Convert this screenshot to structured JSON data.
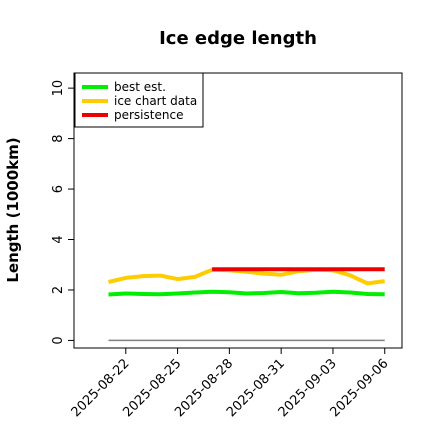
{
  "chart_data": {
    "type": "line",
    "title": "Ice edge length",
    "xlabel": "",
    "ylabel": "Length (1000km)",
    "ylim": [
      -0.3,
      10.6
    ],
    "xlim": [
      "2025-08-19",
      "2025-09-07"
    ],
    "yticks": [
      0,
      2,
      4,
      6,
      8,
      10
    ],
    "xticks": [
      "2025-08-22",
      "2025-08-25",
      "2025-08-28",
      "2025-08-31",
      "2025-09-03",
      "2025-09-06"
    ],
    "grid": false,
    "legend_position": "top-left",
    "series": [
      {
        "name": "best est.",
        "color": "#00ee00",
        "x": [
          "2025-08-21",
          "2025-08-22",
          "2025-08-23",
          "2025-08-24",
          "2025-08-25",
          "2025-08-26",
          "2025-08-27",
          "2025-08-28",
          "2025-08-29",
          "2025-08-30",
          "2025-08-31",
          "2025-09-01",
          "2025-09-02",
          "2025-09-03",
          "2025-09-04",
          "2025-09-05",
          "2025-09-06"
        ],
        "values": [
          1.82,
          1.86,
          1.84,
          1.83,
          1.86,
          1.9,
          1.93,
          1.91,
          1.86,
          1.88,
          1.92,
          1.87,
          1.89,
          1.93,
          1.9,
          1.84,
          1.83
        ]
      },
      {
        "name": "ice chart data",
        "color": "#ffcc00",
        "x": [
          "2025-08-21",
          "2025-08-22",
          "2025-08-23",
          "2025-08-24",
          "2025-08-25",
          "2025-08-26",
          "2025-08-27",
          "2025-08-28",
          "2025-08-29",
          "2025-08-30",
          "2025-08-31",
          "2025-09-01",
          "2025-09-02",
          "2025-09-03",
          "2025-09-04",
          "2025-09-05",
          "2025-09-06"
        ],
        "values": [
          2.32,
          2.48,
          2.55,
          2.57,
          2.43,
          2.52,
          2.8,
          2.78,
          2.72,
          2.65,
          2.6,
          2.74,
          2.8,
          2.78,
          2.58,
          2.26,
          2.35
        ]
      },
      {
        "name": "persistence",
        "color": "#ee0000",
        "x": [
          "2025-08-27",
          "2025-09-06"
        ],
        "values": [
          2.82,
          2.82
        ]
      }
    ],
    "reference_line": {
      "value": 0,
      "color": "#808080",
      "x": [
        "2025-08-21",
        "2025-09-06"
      ]
    }
  }
}
